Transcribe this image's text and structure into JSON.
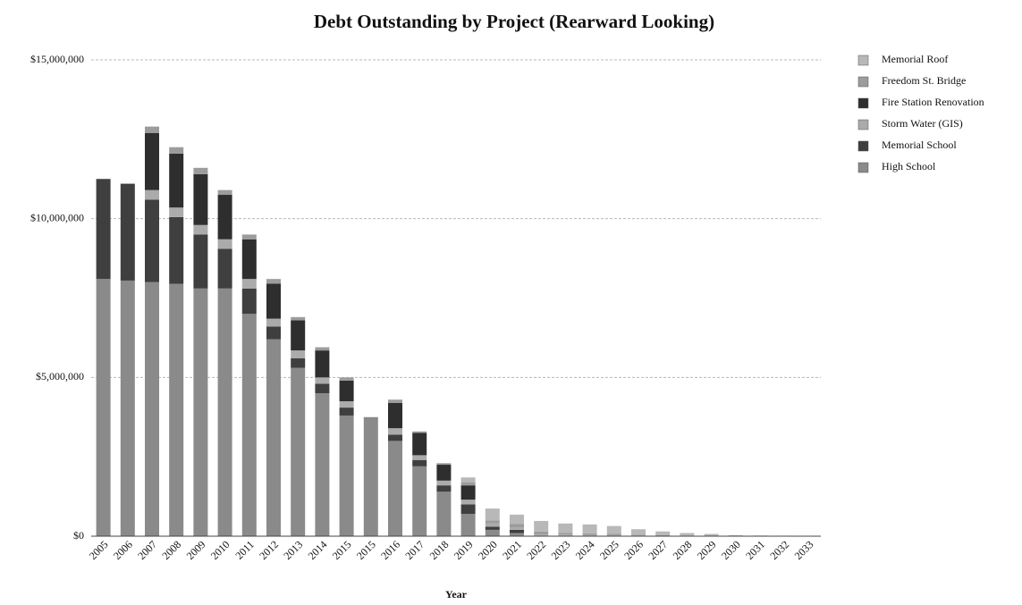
{
  "chart_data": {
    "type": "stacked_bar",
    "title": "Debt Outstanding by Project (Rearward Looking)",
    "x_label": "Year",
    "categories": [
      "2005",
      "2006",
      "2007",
      "2008",
      "2009",
      "2010",
      "2011",
      "2012",
      "2013",
      "2014",
      "2015",
      "2015",
      "2016",
      "2017",
      "2018",
      "2019",
      "2020",
      "2021",
      "2022",
      "2023",
      "2024",
      "2025",
      "2026",
      "2027",
      "2028",
      "2029",
      "2030",
      "2031",
      "2032",
      "2033"
    ],
    "series": [
      {
        "name": "Memorial Roof",
        "color": "#b8b8b8",
        "values": [
          0,
          0,
          0,
          0,
          0,
          0,
          0,
          0,
          0,
          0,
          0,
          0,
          0,
          0,
          0,
          150000,
          370000,
          300000,
          330000,
          300000,
          280000,
          250000,
          170000,
          120000,
          80000,
          60000,
          30000,
          20000,
          15000,
          10000
        ]
      },
      {
        "name": "Freedom St. Bridge",
        "color": "#9c9c9c",
        "values": [
          0,
          0,
          200000,
          200000,
          200000,
          150000,
          150000,
          150000,
          100000,
          100000,
          100000,
          0,
          100000,
          50000,
          50000,
          100000,
          100000,
          100000,
          100000,
          50000,
          50000,
          40000,
          30000,
          20000,
          20000,
          10000,
          0,
          0,
          0,
          0
        ]
      },
      {
        "name": "Fire Station Renovation",
        "color": "#2e2e2e",
        "values": [
          0,
          0,
          1800000,
          1700000,
          1600000,
          1400000,
          1250000,
          1100000,
          950000,
          850000,
          650000,
          0,
          800000,
          700000,
          500000,
          450000,
          0,
          0,
          0,
          0,
          0,
          0,
          0,
          0,
          0,
          0,
          0,
          0,
          0,
          0
        ]
      },
      {
        "name": "Storm Water (GIS)",
        "color": "#ababab",
        "values": [
          0,
          0,
          300000,
          300000,
          300000,
          300000,
          300000,
          250000,
          250000,
          200000,
          200000,
          0,
          200000,
          150000,
          150000,
          150000,
          100000,
          80000,
          50000,
          50000,
          40000,
          30000,
          20000,
          10000,
          0,
          0,
          0,
          0,
          0,
          0
        ]
      },
      {
        "name": "Memorial School",
        "color": "#3f3f3f",
        "values": [
          3150000,
          3050000,
          2600000,
          2100000,
          1700000,
          1250000,
          800000,
          400000,
          300000,
          300000,
          250000,
          0,
          200000,
          200000,
          200000,
          300000,
          100000,
          100000,
          0,
          0,
          0,
          0,
          0,
          0,
          0,
          0,
          0,
          0,
          0,
          0
        ]
      },
      {
        "name": "High School",
        "color": "#8a8a8a",
        "values": [
          8100000,
          8050000,
          8000000,
          7950000,
          7800000,
          7800000,
          7000000,
          6200000,
          5300000,
          4500000,
          3800000,
          3750000,
          3000000,
          2200000,
          1400000,
          700000,
          200000,
          100000,
          0,
          0,
          0,
          0,
          0,
          0,
          0,
          0,
          0,
          0,
          0,
          0
        ]
      }
    ],
    "ylim": [
      0,
      15000000
    ],
    "yticks": [
      {
        "value": 0,
        "label": "$0"
      },
      {
        "value": 5000000,
        "label": "$5,000,000"
      },
      {
        "value": 10000000,
        "label": "$10,000,000"
      },
      {
        "value": 15000000,
        "label": "$15,000,000"
      }
    ],
    "grid": true,
    "legend": "right"
  }
}
